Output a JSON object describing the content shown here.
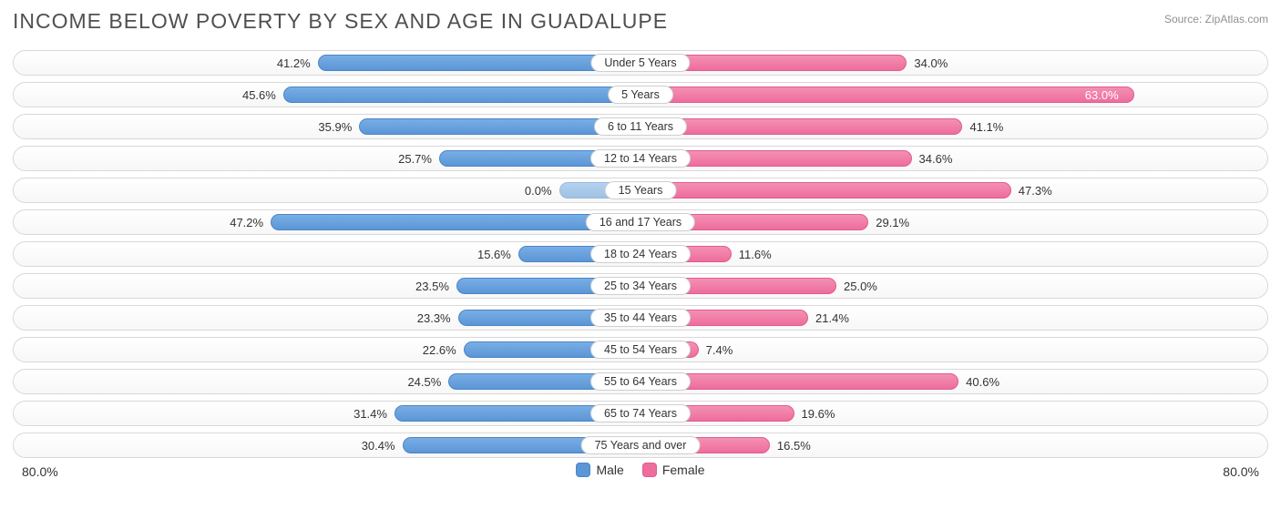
{
  "title": "INCOME BELOW POVERTY BY SEX AND AGE IN GUADALUPE",
  "source": "Source: ZipAtlas.com",
  "axis_max": 80.0,
  "axis_label_left": "80.0%",
  "axis_label_right": "80.0%",
  "legend": {
    "male": "Male",
    "female": "Female"
  },
  "colors": {
    "male_fill": "#5b96d6",
    "male_border": "#4a85c5",
    "female_fill": "#ee6d9c",
    "female_border": "#e05c8c",
    "track_border": "#d8d8d8",
    "text": "#333333",
    "title_text": "#505050",
    "source_text": "#909090",
    "background": "#ffffff"
  },
  "typography": {
    "title_fontsize": 23,
    "label_fontsize": 13,
    "legend_fontsize": 14
  },
  "chart": {
    "type": "diverging-bar",
    "male_side": "left",
    "female_side": "right",
    "value_inside_threshold": 55.0,
    "zero_bar_placeholder_width_pct": 13.0,
    "rows": [
      {
        "category": "Under 5 Years",
        "male": 41.2,
        "female": 34.0
      },
      {
        "category": "5 Years",
        "male": 45.6,
        "female": 63.0
      },
      {
        "category": "6 to 11 Years",
        "male": 35.9,
        "female": 41.1
      },
      {
        "category": "12 to 14 Years",
        "male": 25.7,
        "female": 34.6
      },
      {
        "category": "15 Years",
        "male": 0.0,
        "female": 47.3
      },
      {
        "category": "16 and 17 Years",
        "male": 47.2,
        "female": 29.1
      },
      {
        "category": "18 to 24 Years",
        "male": 15.6,
        "female": 11.6
      },
      {
        "category": "25 to 34 Years",
        "male": 23.5,
        "female": 25.0
      },
      {
        "category": "35 to 44 Years",
        "male": 23.3,
        "female": 21.4
      },
      {
        "category": "45 to 54 Years",
        "male": 22.6,
        "female": 7.4
      },
      {
        "category": "55 to 64 Years",
        "male": 24.5,
        "female": 40.6
      },
      {
        "category": "65 to 74 Years",
        "male": 31.4,
        "female": 19.6
      },
      {
        "category": "75 Years and over",
        "male": 30.4,
        "female": 16.5
      }
    ]
  }
}
